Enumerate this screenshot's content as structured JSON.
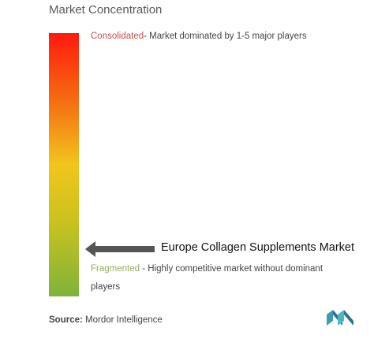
{
  "header": {
    "title": "Market Concentration"
  },
  "consolidated": {
    "label": "Consolidated",
    "text": "- Market dominated by 1-5 major players"
  },
  "marker": {
    "label": "Europe Collagen Supplements Market"
  },
  "fragmented": {
    "label": "Fragmented",
    "text": " - Highly competitive market without dominant players"
  },
  "source": {
    "label": "Source:",
    "text": "Mordor Intelligence"
  }
}
